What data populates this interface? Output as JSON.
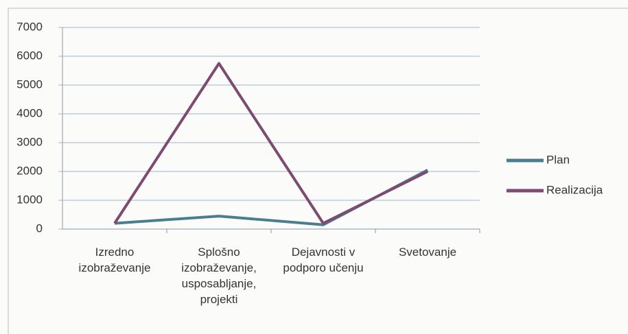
{
  "chart_data": {
    "type": "line",
    "categories": [
      "Izredno izobraževanje",
      "Splošno izobraževanje, usposabljanje, projekti",
      "Dejavnosti v podporo učenju",
      "Svetovanje"
    ],
    "series": [
      {
        "name": "Plan",
        "color": "#4a7d8e",
        "values": [
          200,
          450,
          150,
          2050
        ]
      },
      {
        "name": "Realizacija",
        "color": "#7d4a72",
        "values": [
          200,
          5750,
          200,
          2000
        ]
      }
    ],
    "ylim": [
      0,
      7000
    ],
    "yticks": [
      0,
      1000,
      2000,
      3000,
      4000,
      5000,
      6000,
      7000
    ],
    "grid": true,
    "legend": "right"
  }
}
